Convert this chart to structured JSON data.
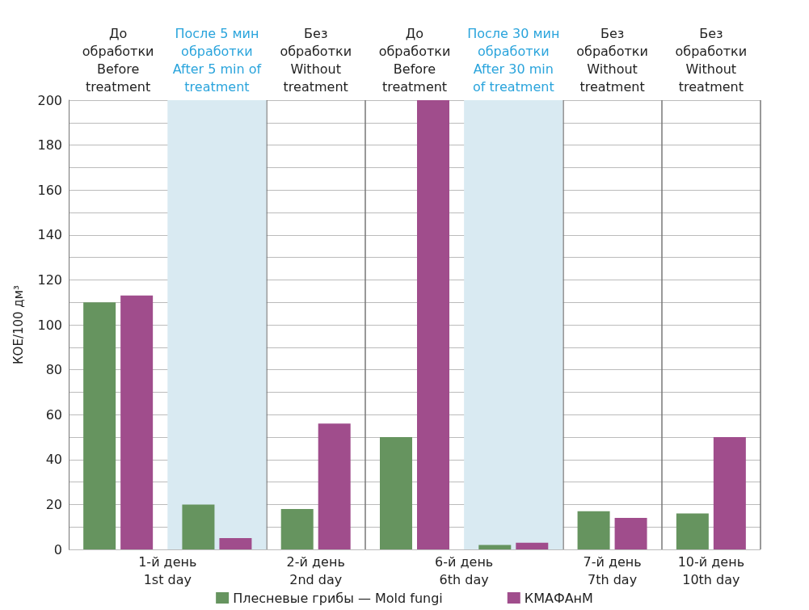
{
  "chart_data": {
    "type": "bar",
    "ylabel": "КОЕ/100 дм³",
    "categories": [
      "До\nобработки\nBefore\ntreatment",
      "После 5 мин\nобработки\nAfter 5 min of\ntreatment",
      "Без\nобработки\nWithout\ntreatment",
      "До\nобработки\nBefore\ntreatment",
      "После 30 мин\nобработки\nAfter 30 min\nof treatment",
      "Без\nобработки\nWithout\ntreatment",
      "Без\nобработки\nWithout\ntreatment"
    ],
    "series": [
      {
        "name": "Плесневые грибы — Mold fungi",
        "color": "#66945f",
        "values": [
          110,
          20,
          18,
          50,
          2,
          17,
          16
        ]
      },
      {
        "name": "КМАФАнМ",
        "color": "#a04d8c",
        "values": [
          113,
          5,
          56,
          200,
          3,
          14,
          50
        ]
      }
    ],
    "bands": [
      {
        "axis": "x",
        "from": "После 5 мин\nобработки\nAfter 5 min of\ntreatment",
        "to": "После 5 мин\nобработки\nAfter 5 min of\ntreatment",
        "color": "#d9eaf2"
      },
      {
        "axis": "x",
        "from": "После 30 мин\nобработки\nAfter 30 min\nof treatment",
        "to": "После 30 мин\nобработки\nAfter 30 min\nof treatment",
        "color": "#d9eaf2"
      }
    ],
    "annotations": [
      "1-й день\n1st day",
      "2-й день\n2nd day",
      "6-й день\n6th day",
      "7-й день\n7th day",
      "10-й день\n10th day"
    ],
    "ylim": [
      0,
      200
    ],
    "yticks": [
      0,
      {
        "value": 10,
        "label": null
      },
      20,
      {
        "value": 30,
        "label": null
      },
      40,
      {
        "value": 50,
        "label": null
      },
      60,
      {
        "value": 70,
        "label": null
      },
      80,
      {
        "value": 90,
        "label": null
      },
      100,
      {
        "value": 110,
        "label": null
      },
      120,
      {
        "value": 130,
        "label": null
      },
      140,
      {
        "value": 150,
        "label": null
      },
      160,
      {
        "value": 170,
        "label": null
      },
      180,
      {
        "value": 190,
        "label": null
      },
      200
    ],
    "grid": "y",
    "legend": "bottom"
  }
}
